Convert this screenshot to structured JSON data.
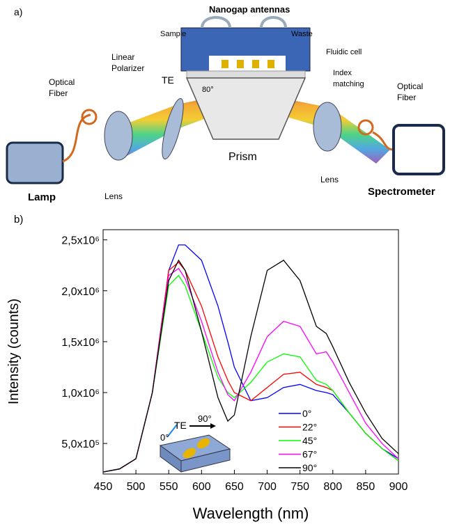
{
  "panel_a": {
    "label": "a)",
    "nanogap": "Nanogap antennas",
    "sample": "Sample",
    "waste": "Waste",
    "fluidic_cell": "Fluidic cell",
    "index_matching": [
      "Index",
      "matching"
    ],
    "fiber_left": [
      "Optical",
      "Fiber"
    ],
    "fiber_right": [
      "Optical",
      "Fiber"
    ],
    "polarizer": [
      "Linear",
      "Polarizer"
    ],
    "te": "TE",
    "angle": "80°",
    "prism": "Prism",
    "lens_left": "Lens",
    "lens_right": "Lens",
    "lamp": "Lamp",
    "spectrometer": "Spectrometer"
  },
  "panel_b_label": "b)",
  "inset": {
    "te": "TE",
    "angle_end": "90°",
    "angle_start": "0°"
  },
  "chart_data": {
    "type": "line",
    "xlabel": "Wavelength (nm)",
    "ylabel": "Intensity (counts)",
    "x": [
      450,
      475,
      500,
      525,
      550,
      565,
      575,
      600,
      625,
      640,
      650,
      675,
      700,
      725,
      750,
      775,
      790,
      800,
      825,
      850,
      875,
      900
    ],
    "series": [
      {
        "name": "0°",
        "color": "#0000ff",
        "values": [
          220000,
          250000,
          350000,
          1000000,
          2200000,
          2450000,
          2450000,
          2300000,
          1850000,
          1500000,
          1250000,
          920000,
          950000,
          1050000,
          1080000,
          1020000,
          1000000,
          980000,
          800000,
          600000,
          450000,
          350000
        ]
      },
      {
        "name": "22°",
        "color": "#ff0000",
        "values": [
          220000,
          250000,
          350000,
          1000000,
          2200000,
          2280000,
          2200000,
          1850000,
          1350000,
          1120000,
          1000000,
          920000,
          1050000,
          1180000,
          1200000,
          1080000,
          1050000,
          1020000,
          800000,
          600000,
          450000,
          330000
        ]
      },
      {
        "name": "45°",
        "color": "#00ff00",
        "values": [
          220000,
          250000,
          350000,
          1000000,
          2050000,
          2150000,
          2050000,
          1600000,
          1150000,
          1000000,
          950000,
          1100000,
          1300000,
          1380000,
          1350000,
          1120000,
          1080000,
          1020000,
          800000,
          600000,
          450000,
          330000
        ]
      },
      {
        "name": "67°",
        "color": "#ff00ff",
        "values": [
          220000,
          250000,
          350000,
          1000000,
          2150000,
          2220000,
          2120000,
          1700000,
          1200000,
          980000,
          920000,
          1200000,
          1550000,
          1700000,
          1650000,
          1380000,
          1400000,
          1300000,
          1000000,
          700000,
          500000,
          350000
        ]
      },
      {
        "name": "90°",
        "color": "#000000",
        "values": [
          220000,
          250000,
          350000,
          1000000,
          2100000,
          2300000,
          2200000,
          1600000,
          950000,
          720000,
          780000,
          1550000,
          2200000,
          2300000,
          2100000,
          1650000,
          1580000,
          1450000,
          1100000,
          800000,
          550000,
          400000
        ]
      }
    ],
    "xlim": [
      450,
      900
    ],
    "xticks": [
      450,
      500,
      550,
      600,
      650,
      700,
      750,
      800,
      850,
      900
    ],
    "ylim": [
      200000,
      2600000
    ],
    "yticks": [
      {
        "value": 500000,
        "label": "5,0x10⁵"
      },
      {
        "value": 1000000,
        "label": "1,0x10⁶"
      },
      {
        "value": 1500000,
        "label": "1,5x10⁶"
      },
      {
        "value": 2000000,
        "label": "2,0x10⁶"
      },
      {
        "value": 2500000,
        "label": "2,5x10⁶"
      }
    ]
  }
}
